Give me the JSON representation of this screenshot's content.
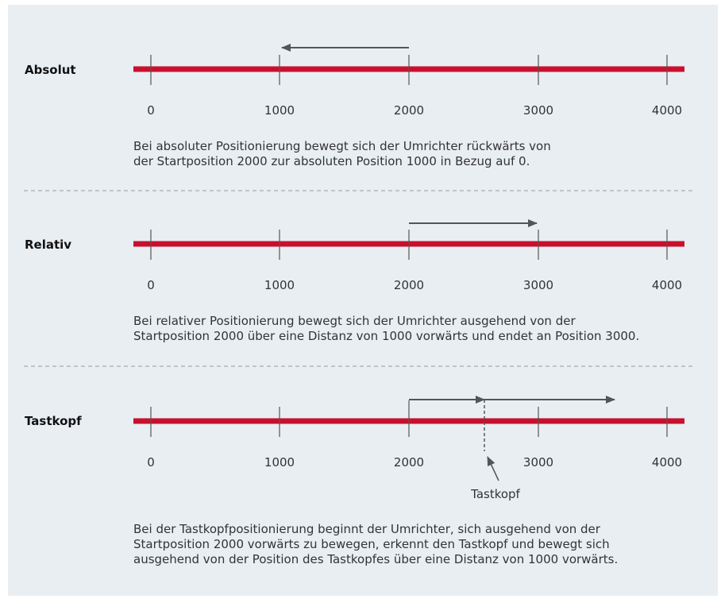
{
  "sections": [
    {
      "label": "Absolut",
      "ticks": [
        "0",
        "1000",
        "2000",
        "3000",
        "4000"
      ],
      "arrows": [
        {
          "from": 2000,
          "to": 1000
        }
      ],
      "description": [
        "Bei absoluter Positionierung bewegt sich der Umrichter rückwärts von",
        "der Startposition 2000 zur absoluten Position 1000 in Bezug auf 0."
      ]
    },
    {
      "label": "Relativ",
      "ticks": [
        "0",
        "1000",
        "2000",
        "3000",
        "4000"
      ],
      "arrows": [
        {
          "from": 2000,
          "to": 3000
        }
      ],
      "description": [
        "Bei relativer Positionierung bewegt sich der Umrichter ausgehend von der",
        "Startposition 2000 über eine Distanz von 1000 vorwärts und endet an Position 3000."
      ]
    },
    {
      "label": "Tastkopf",
      "ticks": [
        "0",
        "1000",
        "2000",
        "3000",
        "4000"
      ],
      "arrows": [
        {
          "from": 2000,
          "to": 2600
        },
        {
          "from": 2600,
          "to": 3600
        }
      ],
      "probe": {
        "position": 2600,
        "label": "Tastkopf"
      },
      "description": [
        "Bei der Tastkopfpositionierung beginnt der Umrichter, sich ausgehend von der",
        "Startposition 2000 vorwärts zu bewegen, erkennt den Tastkopf und bewegt sich",
        "ausgehend von der Position des Tastkopfes über eine Distanz von 1000 vorwärts."
      ]
    }
  ],
  "colors": {
    "axis_line": "#c8102e",
    "arrow": "#555555",
    "separator": "#999999",
    "background": "#e9eef3"
  }
}
